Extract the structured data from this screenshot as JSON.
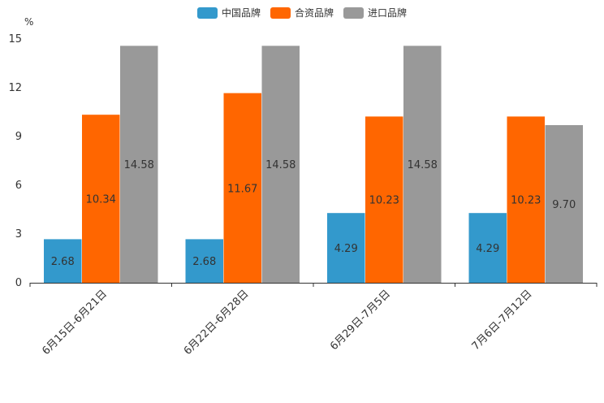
{
  "chart_data": {
    "type": "bar",
    "title": "",
    "ylabel": "%",
    "xlabel": "",
    "ylim": [
      0,
      15
    ],
    "yticks": [
      0,
      3,
      6,
      9,
      12,
      15
    ],
    "categories": [
      "6月15日-6月21日",
      "6月22日-6月28日",
      "6月29日-7月5日",
      "7月6日-7月12日"
    ],
    "series": [
      {
        "name": "中国品牌",
        "color": "#3399cc",
        "values": [
          2.68,
          2.68,
          4.29,
          4.29
        ],
        "labels": [
          "2.68",
          "2.68",
          "4.29",
          "4.29"
        ]
      },
      {
        "name": "合资品牌",
        "color": "#ff6600",
        "values": [
          10.34,
          11.67,
          10.23,
          10.23
        ],
        "labels": [
          "10.34",
          "11.67",
          "10.23",
          "10.23"
        ]
      },
      {
        "name": "进口品牌",
        "color": "#999999",
        "values": [
          14.58,
          14.58,
          14.58,
          9.7
        ],
        "labels": [
          "14.58",
          "14.58",
          "14.58",
          "9.70"
        ]
      }
    ],
    "legend_position": "top-center"
  }
}
